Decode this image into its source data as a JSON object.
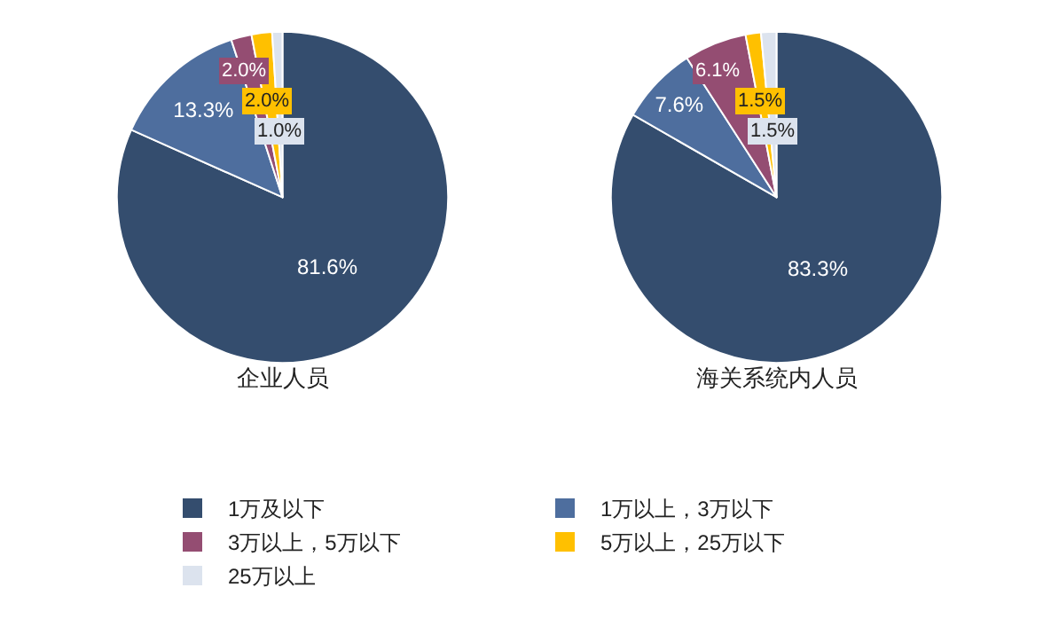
{
  "chart_data": {
    "type": "pie",
    "categories": [
      "1万及以下",
      "1万以上，3万以下",
      "3万以上，5万以下",
      "5万以上，25万以下",
      "25万以上"
    ],
    "colors": [
      "#344d6e",
      "#4e6e9e",
      "#944d72",
      "#ffc000",
      "#dce3ee"
    ],
    "series": [
      {
        "name": "企业人员",
        "values": [
          81.6,
          13.3,
          2.0,
          2.0,
          1.0
        ],
        "value_labels": [
          "81.6%",
          "13.3%",
          "2.0%",
          "2.0%",
          "1.0%"
        ]
      },
      {
        "name": "海关系统内人员",
        "values": [
          83.3,
          7.6,
          6.1,
          1.5,
          1.5
        ],
        "value_labels": [
          "83.3%",
          "7.6%",
          "6.1%",
          "1.5%",
          "1.5%"
        ]
      }
    ],
    "legend": "bottom"
  }
}
